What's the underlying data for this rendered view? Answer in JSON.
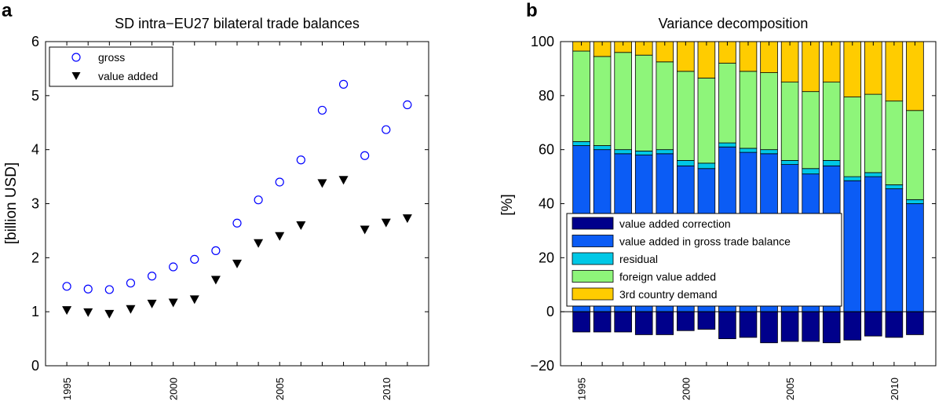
{
  "chart_data": [
    {
      "panel_label": "a",
      "type": "scatter",
      "title": "SD intra−EU27 bilateral trade balances",
      "ylabel": "[billion USD]",
      "xlabel": "",
      "xlim": [
        1994,
        2012
      ],
      "ylim": [
        0,
        6
      ],
      "yticks": [
        "0",
        "1",
        "2",
        "3",
        "4",
        "5",
        "6"
      ],
      "xticks": [
        "1995",
        "2000",
        "2005",
        "2010"
      ],
      "legend_position": "top-left",
      "x": [
        1995,
        1996,
        1997,
        1998,
        1999,
        2000,
        2001,
        2002,
        2003,
        2004,
        2005,
        2006,
        2007,
        2008,
        2009,
        2010,
        2011
      ],
      "series": [
        {
          "name": "gross",
          "marker": "open-circle",
          "color": "#0000ff",
          "values": [
            1.47,
            1.42,
            1.41,
            1.53,
            1.66,
            1.83,
            1.97,
            2.13,
            2.64,
            3.07,
            3.4,
            3.81,
            4.73,
            5.21,
            3.89,
            4.37,
            4.83
          ]
        },
        {
          "name": "value added",
          "marker": "filled-down-triangle",
          "color": "#000000",
          "values": [
            1.03,
            0.99,
            0.96,
            1.05,
            1.15,
            1.17,
            1.23,
            1.59,
            1.89,
            2.27,
            2.4,
            2.6,
            3.38,
            3.44,
            2.52,
            2.65,
            2.73
          ]
        }
      ]
    },
    {
      "panel_label": "b",
      "type": "bar",
      "stacked": true,
      "title": "Variance decomposition",
      "ylabel": "[%]",
      "xlabel": "",
      "ylim": [
        -20,
        100
      ],
      "yticks": [
        "−20",
        "0",
        "20",
        "40",
        "60",
        "80",
        "100"
      ],
      "xticks": [
        "1995",
        "2000",
        "2005",
        "2010"
      ],
      "legend_position": "lower-left",
      "categories": [
        1995,
        1996,
        1997,
        1998,
        1999,
        2000,
        2001,
        2002,
        2003,
        2004,
        2005,
        2006,
        2007,
        2008,
        2009,
        2010,
        2011
      ],
      "series": [
        {
          "name": "value added correction",
          "color": "#00008b",
          "values": [
            -7.5,
            -7.5,
            -7.5,
            -8.5,
            -8.5,
            -7.0,
            -6.5,
            -10.0,
            -9.5,
            -11.5,
            -11.0,
            -11.0,
            -11.5,
            -10.5,
            -9.0,
            -9.5,
            -8.5
          ]
        },
        {
          "name": "value added in gross trade balance",
          "color": "#0b5cf5",
          "values": [
            61.5,
            60.0,
            58.5,
            58.0,
            58.5,
            54.0,
            53.0,
            61.0,
            59.0,
            58.5,
            54.5,
            51.0,
            54.0,
            48.5,
            50.0,
            45.5,
            40.0
          ]
        },
        {
          "name": "residual",
          "color": "#00c8e6",
          "values": [
            1.5,
            1.5,
            1.5,
            1.5,
            1.5,
            2.0,
            2.0,
            1.5,
            1.5,
            1.5,
            1.5,
            2.0,
            2.0,
            1.5,
            1.5,
            1.5,
            1.5
          ]
        },
        {
          "name": "foreign value added",
          "color": "#8ef57a",
          "values": [
            33.5,
            33.0,
            36.0,
            35.5,
            32.5,
            33.0,
            31.5,
            29.5,
            28.5,
            28.5,
            29.0,
            28.5,
            29.0,
            29.5,
            29.0,
            31.0,
            33.0
          ]
        },
        {
          "name": "3rd country demand",
          "color": "#ffcc00",
          "values": [
            3.5,
            5.5,
            4.0,
            5.0,
            7.5,
            11.0,
            13.5,
            8.0,
            11.0,
            11.5,
            15.0,
            18.5,
            15.0,
            20.5,
            19.5,
            22.0,
            25.5
          ]
        }
      ]
    }
  ]
}
